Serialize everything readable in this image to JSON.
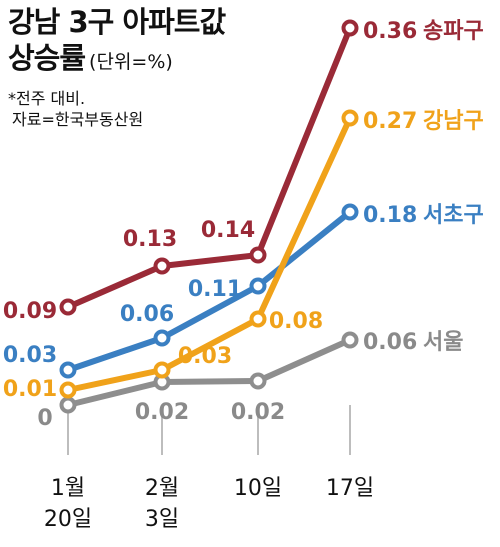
{
  "header": {
    "title_line1": "강남 3구 아파트값",
    "title_line2": "상승률",
    "unit": "(단위=%)",
    "note1": "*전주 대비.",
    "note2": "자료=한국부동산원"
  },
  "chart_data": {
    "type": "line",
    "title": "강남 3구 아파트값 상승률",
    "ylabel": "%",
    "grid": false,
    "categories": [
      [
        "1월",
        "20일"
      ],
      [
        "2월",
        "3일"
      ],
      [
        "10일"
      ],
      [
        "17일"
      ]
    ],
    "series": [
      {
        "name": "송파구",
        "color": "#9a2a37",
        "values": [
          0.09,
          0.13,
          0.14,
          0.36
        ],
        "labels": [
          "0.09",
          "0.13",
          "0.14",
          "0.36"
        ]
      },
      {
        "name": "강남구",
        "color": "#f0a21a",
        "values": [
          0.01,
          0.03,
          0.08,
          0.27
        ],
        "labels": [
          "0.01",
          "0.03",
          "0.08",
          "0.27"
        ]
      },
      {
        "name": "서초구",
        "color": "#3a7fc2",
        "values": [
          0.03,
          0.06,
          0.11,
          0.18
        ],
        "labels": [
          "0.03",
          "0.06",
          "0.11",
          "0.18"
        ]
      },
      {
        "name": "서울",
        "color": "#8e8e8e",
        "values": [
          0,
          0.02,
          0.02,
          0.06
        ],
        "labels": [
          "0",
          "0.02",
          "0.02",
          "0.06"
        ]
      }
    ]
  }
}
